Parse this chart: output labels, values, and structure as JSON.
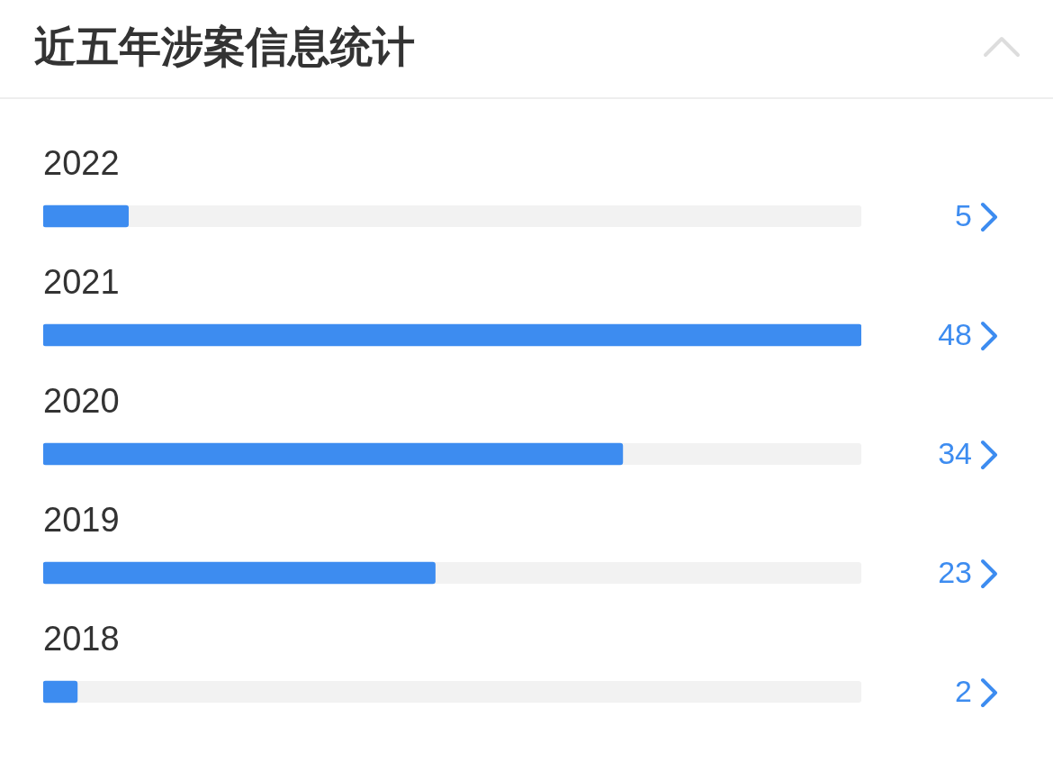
{
  "chart_data": {
    "type": "bar",
    "orientation": "horizontal",
    "title": "近五年涉案信息统计",
    "categories": [
      "2022",
      "2021",
      "2020",
      "2019",
      "2018"
    ],
    "values": [
      5,
      48,
      34,
      23,
      2
    ],
    "color": "#3d8cf0",
    "xlim": [
      0,
      48
    ],
    "data_labels": true,
    "tick_labels": "y"
  }
}
